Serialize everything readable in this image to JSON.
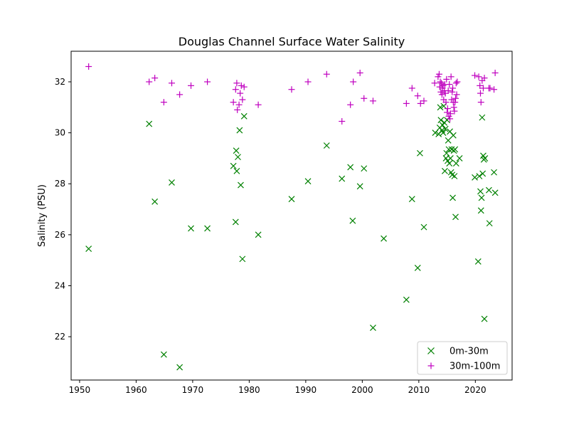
{
  "chart_data": {
    "type": "scatter",
    "title": "Douglas Channel Surface Water Salinity",
    "xlabel": "",
    "ylabel": "Salinity (PSU)",
    "xlim": [
      1948.5,
      2026.5
    ],
    "ylim": [
      20.3,
      33.2
    ],
    "xticks": [
      1950,
      1960,
      1970,
      1980,
      1990,
      2000,
      2010,
      2020
    ],
    "yticks": [
      22,
      24,
      26,
      28,
      30,
      32
    ],
    "xtick_labels": [
      "1950",
      "1960",
      "1970",
      "1980",
      "1990",
      "2000",
      "2010",
      "2020"
    ],
    "ytick_labels": [
      "22",
      "24",
      "26",
      "28",
      "30",
      "32"
    ],
    "grid": false,
    "legend": {
      "position": "lower-right",
      "entries": [
        "0m-30m",
        "30m-100m"
      ]
    },
    "series": [
      {
        "name": "0m-30m",
        "marker": "x",
        "color": "#008000",
        "points": [
          [
            1951.6,
            25.45
          ],
          [
            1962.3,
            30.35
          ],
          [
            1963.3,
            27.3
          ],
          [
            1964.9,
            21.3
          ],
          [
            1966.3,
            28.05
          ],
          [
            1967.7,
            20.8
          ],
          [
            1969.7,
            26.25
          ],
          [
            1972.6,
            26.25
          ],
          [
            1977.2,
            28.7
          ],
          [
            1977.6,
            26.5
          ],
          [
            1977.7,
            29.3
          ],
          [
            1977.8,
            28.5
          ],
          [
            1978.0,
            29.05
          ],
          [
            1978.3,
            30.1
          ],
          [
            1978.5,
            27.95
          ],
          [
            1978.8,
            25.05
          ],
          [
            1979.1,
            30.65
          ],
          [
            1981.6,
            26.0
          ],
          [
            1987.5,
            27.4
          ],
          [
            1990.4,
            28.1
          ],
          [
            1993.7,
            29.5
          ],
          [
            1996.4,
            28.2
          ],
          [
            1997.9,
            28.65
          ],
          [
            1998.3,
            26.55
          ],
          [
            1999.6,
            27.9
          ],
          [
            2000.3,
            28.6
          ],
          [
            2001.9,
            22.35
          ],
          [
            2003.8,
            25.85
          ],
          [
            2007.8,
            23.45
          ],
          [
            2008.8,
            27.4
          ],
          [
            2009.8,
            24.7
          ],
          [
            2010.2,
            29.2
          ],
          [
            2010.9,
            26.3
          ],
          [
            2012.9,
            30.0
          ],
          [
            2013.5,
            29.95
          ],
          [
            2013.7,
            30.2
          ],
          [
            2013.8,
            31.0
          ],
          [
            2013.9,
            30.5
          ],
          [
            2014.1,
            30.1
          ],
          [
            2014.2,
            30.3
          ],
          [
            2014.3,
            30.0
          ],
          [
            2014.4,
            31.05
          ],
          [
            2014.5,
            30.4
          ],
          [
            2014.6,
            28.5
          ],
          [
            2014.7,
            30.15
          ],
          [
            2014.8,
            29.0
          ],
          [
            2014.9,
            29.2
          ],
          [
            2015.0,
            30.5
          ],
          [
            2015.1,
            28.9
          ],
          [
            2015.2,
            29.7
          ],
          [
            2015.3,
            29.35
          ],
          [
            2015.4,
            28.8
          ],
          [
            2015.5,
            30.05
          ],
          [
            2015.6,
            29.0
          ],
          [
            2015.7,
            28.45
          ],
          [
            2015.8,
            29.35
          ],
          [
            2015.9,
            28.35
          ],
          [
            2016.0,
            27.45
          ],
          [
            2016.1,
            29.9
          ],
          [
            2016.2,
            29.3
          ],
          [
            2016.3,
            28.3
          ],
          [
            2016.4,
            29.35
          ],
          [
            2016.5,
            26.7
          ],
          [
            2016.6,
            28.8
          ],
          [
            2017.2,
            29.0
          ],
          [
            2019.9,
            28.25
          ],
          [
            2020.5,
            24.95
          ],
          [
            2020.7,
            28.3
          ],
          [
            2020.9,
            27.7
          ],
          [
            2021.0,
            26.95
          ],
          [
            2021.1,
            27.45
          ],
          [
            2021.2,
            30.6
          ],
          [
            2021.3,
            28.4
          ],
          [
            2021.4,
            29.1
          ],
          [
            2021.5,
            28.95
          ],
          [
            2021.6,
            22.7
          ],
          [
            2021.7,
            29.0
          ],
          [
            2022.4,
            27.75
          ],
          [
            2022.5,
            26.45
          ],
          [
            2023.3,
            28.45
          ],
          [
            2023.5,
            27.65
          ]
        ]
      },
      {
        "name": "30m-100m",
        "marker": "+",
        "color": "#bf00bf",
        "points": [
          [
            1951.6,
            32.6
          ],
          [
            1962.3,
            32.0
          ],
          [
            1963.3,
            32.15
          ],
          [
            1964.9,
            31.2
          ],
          [
            1966.3,
            31.95
          ],
          [
            1967.7,
            31.5
          ],
          [
            1969.7,
            31.85
          ],
          [
            1972.6,
            32.0
          ],
          [
            1977.2,
            31.2
          ],
          [
            1977.6,
            31.7
          ],
          [
            1977.8,
            31.95
          ],
          [
            1977.9,
            30.9
          ],
          [
            1978.2,
            31.1
          ],
          [
            1978.4,
            31.55
          ],
          [
            1978.6,
            31.85
          ],
          [
            1978.8,
            31.3
          ],
          [
            1979.1,
            31.8
          ],
          [
            1981.6,
            31.1
          ],
          [
            1987.5,
            31.7
          ],
          [
            1990.4,
            32.0
          ],
          [
            1993.7,
            32.3
          ],
          [
            1996.4,
            30.45
          ],
          [
            1997.9,
            31.1
          ],
          [
            1998.4,
            32.0
          ],
          [
            1999.6,
            32.35
          ],
          [
            2000.3,
            31.35
          ],
          [
            2001.9,
            31.25
          ],
          [
            2007.8,
            31.15
          ],
          [
            2008.8,
            31.75
          ],
          [
            2009.8,
            31.45
          ],
          [
            2010.3,
            31.15
          ],
          [
            2010.9,
            31.25
          ],
          [
            2012.8,
            31.95
          ],
          [
            2013.4,
            32.2
          ],
          [
            2013.6,
            32.3
          ],
          [
            2013.7,
            31.8
          ],
          [
            2013.8,
            32.0
          ],
          [
            2013.9,
            31.6
          ],
          [
            2014.0,
            31.95
          ],
          [
            2014.1,
            31.5
          ],
          [
            2014.2,
            31.75
          ],
          [
            2014.3,
            31.85
          ],
          [
            2014.4,
            31.3
          ],
          [
            2014.5,
            31.65
          ],
          [
            2014.6,
            31.9
          ],
          [
            2014.7,
            31.55
          ],
          [
            2014.8,
            31.2
          ],
          [
            2014.9,
            32.1
          ],
          [
            2015.0,
            30.8
          ],
          [
            2015.1,
            30.95
          ],
          [
            2015.2,
            31.65
          ],
          [
            2015.3,
            30.65
          ],
          [
            2015.4,
            31.9
          ],
          [
            2015.5,
            30.55
          ],
          [
            2015.6,
            30.75
          ],
          [
            2015.7,
            32.2
          ],
          [
            2015.8,
            31.3
          ],
          [
            2015.9,
            31.6
          ],
          [
            2016.0,
            31.75
          ],
          [
            2016.1,
            31.2
          ],
          [
            2016.2,
            31.0
          ],
          [
            2016.3,
            30.85
          ],
          [
            2016.4,
            31.2
          ],
          [
            2016.5,
            31.35
          ],
          [
            2016.6,
            31.95
          ],
          [
            2016.7,
            31.5
          ],
          [
            2016.8,
            32.0
          ],
          [
            2019.9,
            32.25
          ],
          [
            2020.6,
            32.2
          ],
          [
            2020.8,
            31.85
          ],
          [
            2020.9,
            31.55
          ],
          [
            2021.0,
            31.2
          ],
          [
            2021.2,
            32.05
          ],
          [
            2021.4,
            31.75
          ],
          [
            2021.6,
            32.15
          ],
          [
            2022.4,
            31.75
          ],
          [
            2022.6,
            31.75
          ],
          [
            2023.3,
            31.7
          ],
          [
            2023.5,
            32.35
          ]
        ]
      }
    ]
  }
}
